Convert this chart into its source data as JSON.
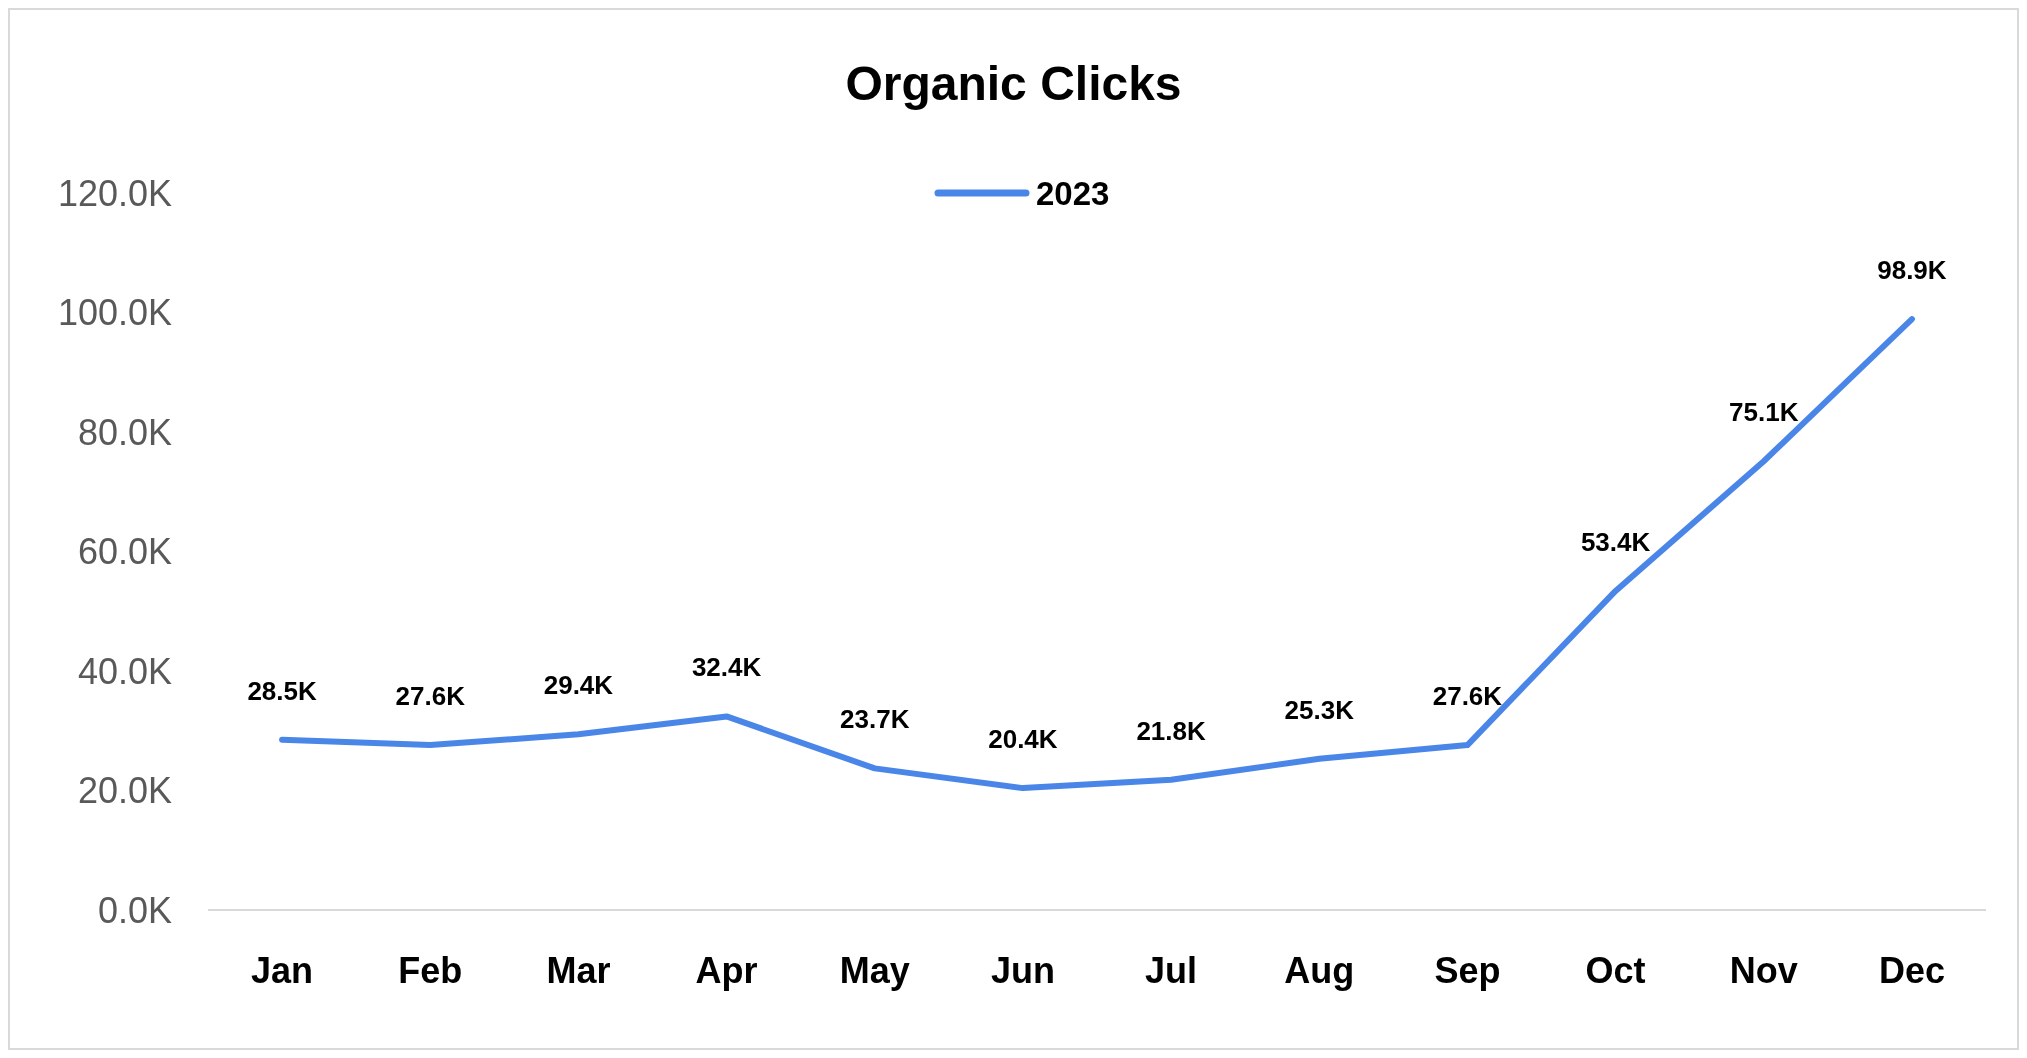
{
  "chart_data": {
    "type": "line",
    "title": "Organic Clicks",
    "categories": [
      "Jan",
      "Feb",
      "Mar",
      "Apr",
      "May",
      "Jun",
      "Jul",
      "Aug",
      "Sep",
      "Oct",
      "Nov",
      "Dec"
    ],
    "series": [
      {
        "name": "2023",
        "color": "#4a86e8",
        "values": [
          28500,
          27600,
          29400,
          32400,
          23700,
          20400,
          21800,
          25300,
          27600,
          53400,
          75100,
          98900
        ],
        "value_labels": [
          "28.5K",
          "27.6K",
          "29.4K",
          "32.4K",
          "23.7K",
          "20.4K",
          "21.8K",
          "25.3K",
          "27.6K",
          "53.4K",
          "75.1K",
          "98.9K"
        ]
      }
    ],
    "ylim": [
      0,
      120000
    ],
    "yticks": [
      {
        "value": 0,
        "label": "0.0K"
      },
      {
        "value": 20000,
        "label": "20.0K"
      },
      {
        "value": 40000,
        "label": "40.0K"
      },
      {
        "value": 60000,
        "label": "60.0K"
      },
      {
        "value": 80000,
        "label": "80.0K"
      },
      {
        "value": 100000,
        "label": "100.0K"
      },
      {
        "value": 120000,
        "label": "120.0K"
      }
    ],
    "grid": false,
    "legend": "top",
    "marker": "none",
    "line_style": "solid"
  }
}
